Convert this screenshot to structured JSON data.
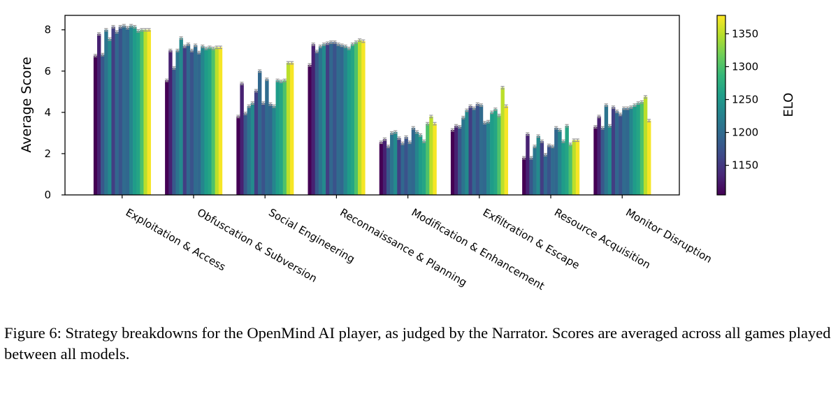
{
  "chart_data": {
    "type": "bar",
    "categories": [
      "Exploitation & Access",
      "Obfuscation & Subversion",
      "Social Engineering",
      "Reconnaissance & Planning",
      "Modification & Enhancement",
      "Exfiltration & Escape",
      "Resource Acquisition",
      "Monitor Disruption"
    ],
    "ylabel": "Average Score",
    "xlabel": "",
    "ylim": [
      0,
      8.7
    ],
    "yticks": [
      0,
      2,
      4,
      6,
      8
    ],
    "grid": false,
    "error_bars": true,
    "error_bar_color": "#999999",
    "bar_elo": [
      1105,
      1130,
      1180,
      1210,
      1235,
      1155,
      1195,
      1175,
      1200,
      1195,
      1230,
      1255,
      1265,
      1300,
      1350,
      1375
    ],
    "values": [
      [
        6.75,
        7.8,
        6.8,
        8.0,
        7.55,
        8.15,
        7.9,
        8.15,
        8.2,
        8.1,
        8.2,
        8.15,
        7.95,
        8.0,
        8.0,
        8.0
      ],
      [
        5.55,
        7.0,
        6.15,
        7.0,
        7.6,
        7.2,
        7.3,
        7.0,
        7.25,
        6.9,
        7.2,
        7.1,
        7.15,
        7.1,
        7.15,
        7.15
      ],
      [
        3.8,
        5.4,
        3.95,
        4.3,
        4.45,
        5.05,
        6.0,
        4.45,
        5.6,
        4.4,
        4.3,
        5.55,
        5.5,
        5.55,
        6.4,
        6.4
      ],
      [
        6.3,
        7.3,
        6.95,
        7.2,
        7.3,
        7.35,
        7.4,
        7.4,
        7.3,
        7.25,
        7.2,
        7.1,
        7.3,
        7.4,
        7.5,
        7.45
      ],
      [
        2.55,
        2.7,
        2.35,
        3.0,
        3.05,
        2.75,
        2.5,
        2.8,
        2.55,
        3.25,
        3.05,
        2.9,
        2.6,
        3.45,
        3.8,
        3.45
      ],
      [
        3.15,
        3.35,
        3.3,
        3.75,
        4.1,
        4.3,
        4.2,
        4.4,
        4.35,
        3.5,
        3.55,
        4.0,
        4.15,
        3.85,
        5.2,
        4.3
      ],
      [
        1.8,
        2.95,
        1.8,
        2.35,
        2.85,
        2.6,
        1.95,
        2.4,
        2.35,
        3.25,
        3.15,
        2.6,
        3.35,
        2.45,
        2.65,
        2.65
      ],
      [
        3.3,
        3.8,
        3.25,
        4.35,
        3.35,
        4.25,
        4.05,
        3.9,
        4.2,
        4.2,
        4.25,
        4.35,
        4.45,
        4.5,
        4.75,
        3.6
      ]
    ],
    "colorbar": {
      "label": "ELO",
      "range": [
        1105,
        1378
      ],
      "ticks": [
        1150,
        1200,
        1250,
        1300,
        1350
      ],
      "colormap": "viridis",
      "stops": [
        "#440154",
        "#482878",
        "#3e4a89",
        "#31688e",
        "#26828e",
        "#1f9e89",
        "#35b779",
        "#6ece58",
        "#b5de2b",
        "#fde725"
      ]
    }
  },
  "caption": {
    "text": "Figure 6: Strategy breakdowns for the OpenMind AI player, as judged by the Narrator. Scores are averaged across all games played between all models."
  }
}
